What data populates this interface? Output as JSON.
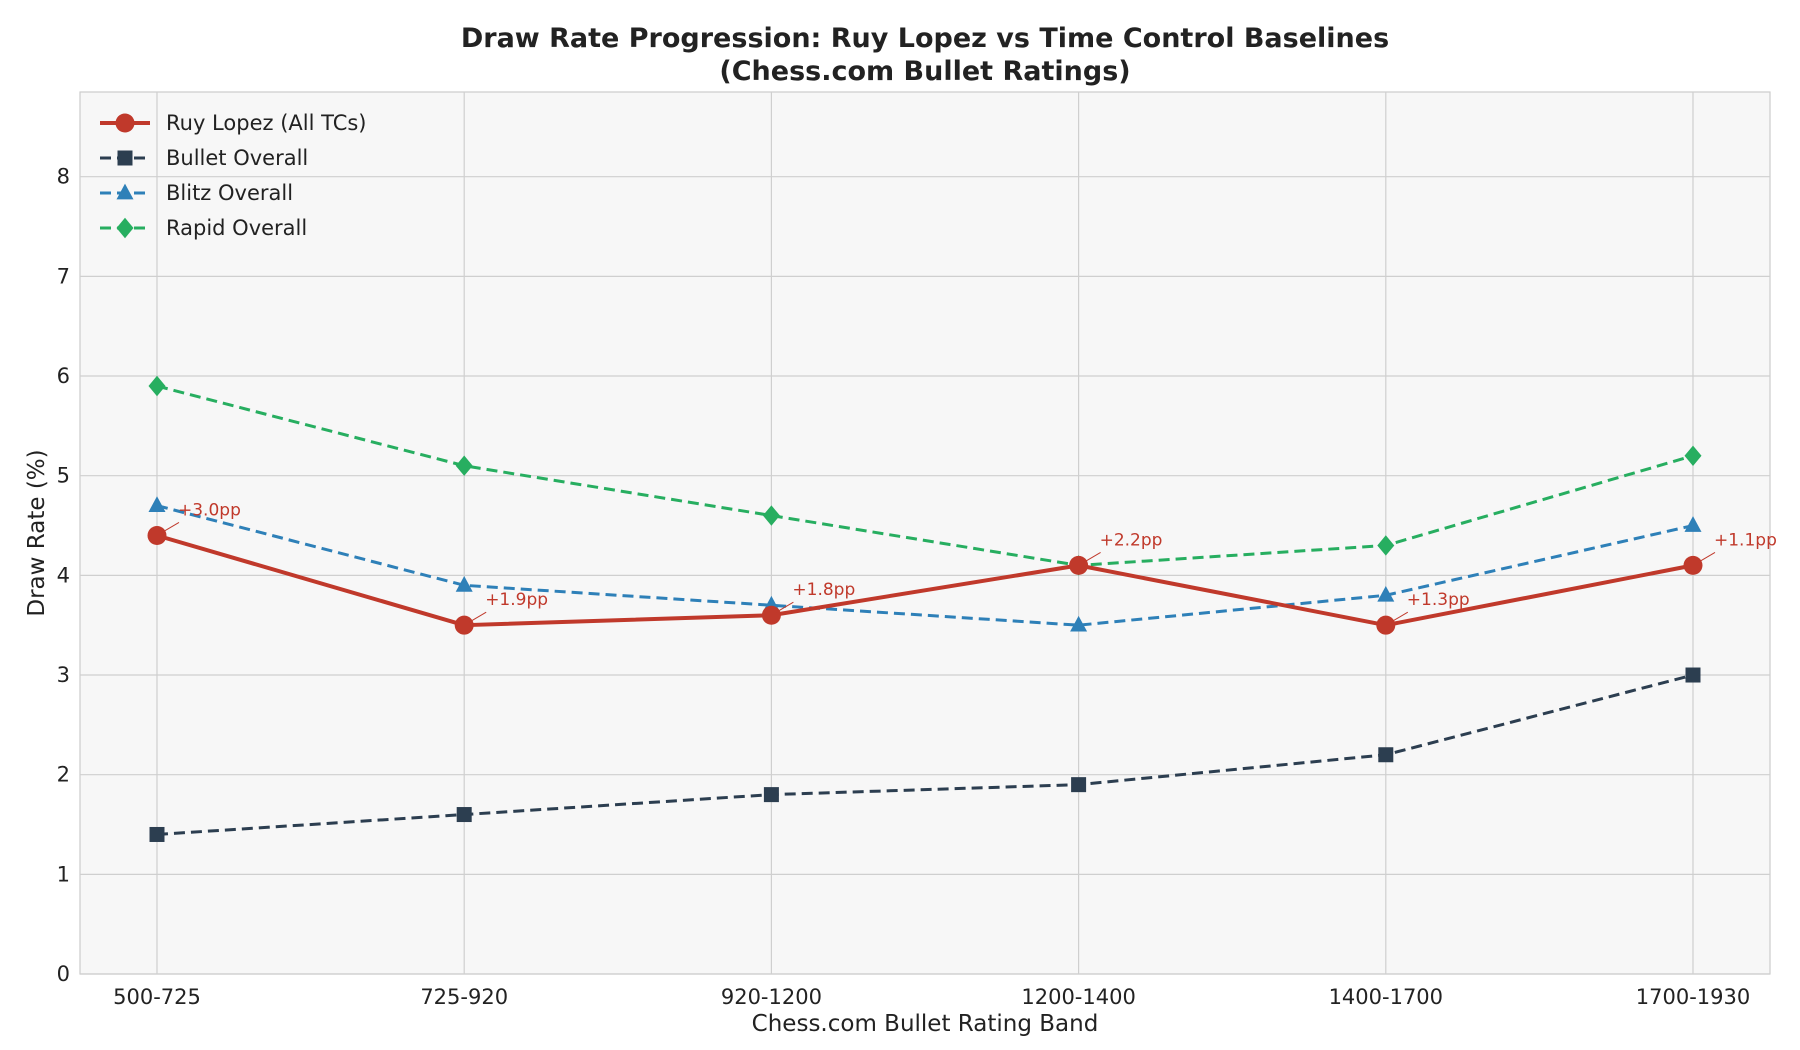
{
  "chart_data": {
    "type": "line",
    "title_line1": "Draw Rate Progression: Ruy Lopez vs Time Control Baselines",
    "title_line2": "(Chess.com Bullet Ratings)",
    "xlabel": "Chess.com Bullet Rating Band",
    "ylabel": "Draw Rate (%)",
    "categories": [
      "500-725",
      "725-920",
      "920-1200",
      "1200-1400",
      "1400-1700",
      "1700-1930"
    ],
    "ylim": [
      0,
      8.85
    ],
    "yticks": [
      "0",
      "1",
      "2",
      "3",
      "4",
      "5",
      "6",
      "7",
      "8"
    ],
    "grid": true,
    "legend_position": "top-left",
    "series": [
      {
        "name": "Bullet Overall",
        "values": [
          1.4,
          1.6,
          1.8,
          1.9,
          2.2,
          3.0
        ],
        "color": "#2c3e50",
        "marker": "square",
        "dash": true
      },
      {
        "name": "Blitz Overall",
        "values": [
          4.7,
          3.9,
          3.7,
          3.5,
          3.8,
          4.5
        ],
        "color": "#2e80b8",
        "marker": "triangle",
        "dash": true
      },
      {
        "name": "Rapid Overall",
        "values": [
          5.9,
          5.1,
          4.6,
          4.1,
          4.3,
          5.2
        ],
        "color": "#27ae60",
        "marker": "diamond",
        "dash": true
      },
      {
        "name": "Ruy Lopez (All TCs)",
        "values": [
          4.4,
          3.5,
          3.6,
          4.1,
          3.5,
          4.1
        ],
        "color": "#c0392b",
        "marker": "circle",
        "dash": false
      }
    ],
    "legend_order": [
      "Ruy Lopez (All TCs)",
      "Bullet Overall",
      "Blitz Overall",
      "Rapid Overall"
    ],
    "annotations": [
      "+3.0pp",
      "+1.9pp",
      "+1.8pp",
      "+2.2pp",
      "+1.3pp",
      "+1.1pp"
    ],
    "annotation_color": "#c0392b"
  }
}
